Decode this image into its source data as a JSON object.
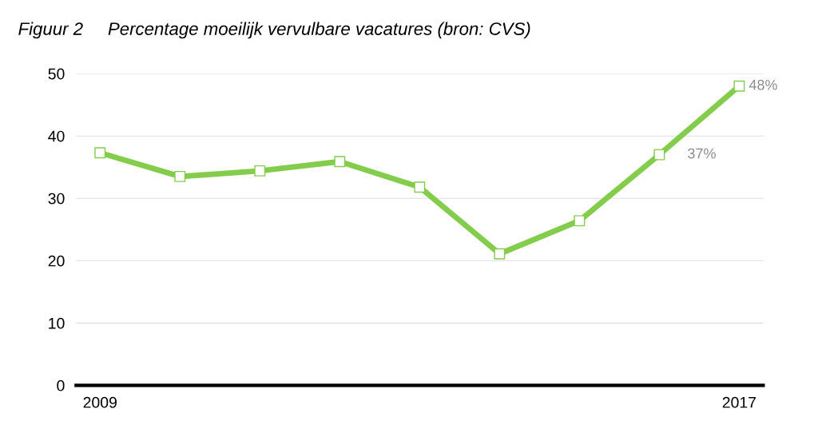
{
  "chart_data": {
    "type": "line",
    "title": "Figuur 2     Percentage moeilijk vervulbare vacatures (bron: CVS)",
    "categories": [
      "2009",
      null,
      null,
      null,
      null,
      null,
      null,
      null,
      "2017"
    ],
    "series": [
      {
        "color": "#84cc4c",
        "values": [
          37.3,
          33.5,
          34.4,
          35.9,
          31.8,
          21.1,
          26.4,
          37,
          48
        ],
        "value_labels": [
          null,
          null,
          null,
          null,
          null,
          null,
          null,
          "37%",
          "48%"
        ]
      }
    ],
    "ylim": [
      0,
      50
    ],
    "yticks": [
      0,
      10,
      20,
      30,
      40,
      50
    ],
    "grid": "y",
    "marker": "square",
    "line_style": "solid",
    "legend": false
  }
}
